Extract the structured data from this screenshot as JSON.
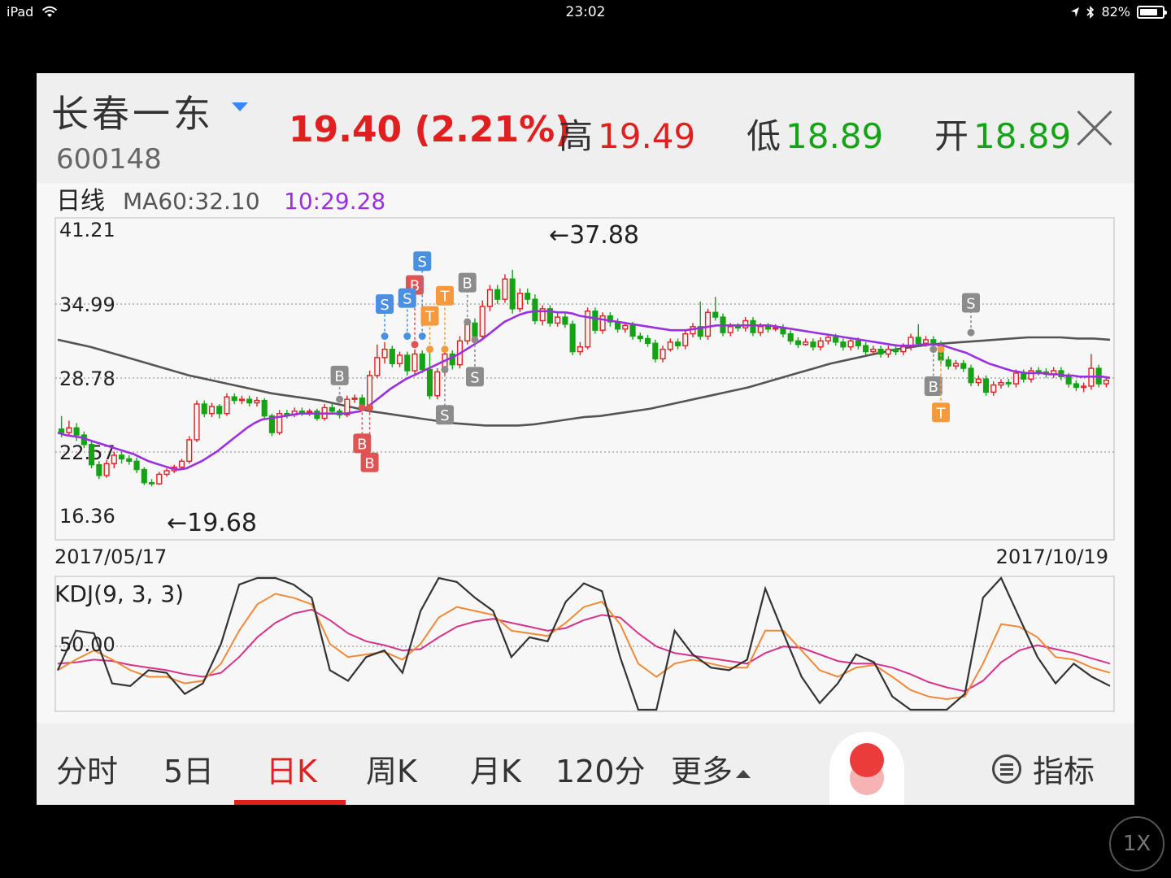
{
  "status_bar": {
    "device": "iPad",
    "time": "23:02",
    "battery": "82%",
    "battery_level": 0.82
  },
  "stock": {
    "name": "长春一东",
    "code": "600148",
    "price_text": "19.40 (2.21%)",
    "high_label": "高",
    "high": "19.49",
    "low_label": "低",
    "low": "18.89",
    "open_label": "开",
    "open": "18.89"
  },
  "chart_header": {
    "period": "日线",
    "ma60": "MA60:32.10",
    "ma_value": "10:29.28"
  },
  "colors": {
    "up": "#e02020",
    "down": "#14a314",
    "ma_purple": "#9b30e0",
    "ma60": "#555555",
    "k": "#f08a3a",
    "d": "#d6338a",
    "j": "#333333"
  },
  "chart_data": {
    "type": "candlestick",
    "y_labels": [
      "41.21",
      "34.99",
      "28.78",
      "22.57",
      "16.36"
    ],
    "ylim": [
      16.36,
      41.21
    ],
    "start_date": "2017/05/17",
    "end_date": "2017/10/19",
    "max_label": "←37.88",
    "min_label": "←19.68",
    "candles": [
      [
        24.5,
        24.2,
        25.6,
        23.8
      ],
      [
        24.2,
        24.6,
        25.2,
        23.9
      ],
      [
        24.6,
        24.0,
        25.0,
        23.5
      ],
      [
        24.0,
        23.2,
        24.3,
        22.9
      ],
      [
        23.2,
        21.5,
        23.5,
        21.2
      ],
      [
        21.5,
        20.6,
        21.8,
        20.3
      ],
      [
        20.6,
        21.6,
        21.9,
        20.4
      ],
      [
        21.6,
        22.3,
        22.6,
        21.2
      ],
      [
        22.3,
        22.0,
        22.6,
        21.6
      ],
      [
        22.0,
        21.8,
        22.3,
        21.5
      ],
      [
        21.8,
        21.1,
        22.1,
        20.8
      ],
      [
        21.1,
        20.0,
        21.3,
        19.8
      ],
      [
        20.0,
        19.9,
        20.3,
        19.68
      ],
      [
        19.9,
        20.7,
        20.9,
        19.8
      ],
      [
        20.7,
        21.0,
        21.2,
        20.5
      ],
      [
        21.0,
        21.3,
        21.5,
        20.8
      ],
      [
        21.3,
        21.8,
        22.0,
        21.1
      ],
      [
        21.8,
        23.6,
        23.9,
        21.6
      ],
      [
        23.6,
        26.6,
        26.9,
        23.4
      ],
      [
        26.6,
        25.8,
        26.9,
        25.5
      ],
      [
        25.8,
        26.4,
        26.7,
        25.5
      ],
      [
        26.4,
        25.8,
        26.6,
        25.4
      ],
      [
        25.8,
        27.2,
        27.5,
        25.6
      ],
      [
        27.2,
        26.9,
        27.5,
        26.6
      ],
      [
        26.9,
        27.0,
        27.3,
        26.6
      ],
      [
        27.0,
        26.7,
        27.3,
        26.4
      ],
      [
        26.7,
        26.9,
        27.2,
        26.4
      ],
      [
        26.9,
        25.6,
        27.1,
        25.3
      ],
      [
        25.6,
        24.2,
        25.8,
        23.9
      ],
      [
        24.2,
        25.8,
        26.1,
        24.0
      ],
      [
        25.8,
        25.7,
        26.1,
        25.4
      ],
      [
        25.7,
        26.0,
        26.3,
        25.5
      ],
      [
        26.0,
        25.9,
        26.3,
        25.6
      ],
      [
        25.9,
        26.0,
        26.2,
        25.6
      ],
      [
        26.0,
        25.4,
        26.2,
        25.2
      ],
      [
        25.4,
        26.3,
        26.6,
        25.2
      ],
      [
        26.3,
        26.0,
        26.6,
        25.8
      ],
      [
        26.0,
        25.7,
        26.2,
        25.4
      ],
      [
        25.7,
        27.0,
        27.3,
        25.5
      ],
      [
        27.0,
        27.1,
        27.4,
        26.7
      ],
      [
        27.1,
        26.5,
        27.4,
        26.2
      ],
      [
        26.5,
        29.0,
        29.4,
        26.3
      ],
      [
        29.0,
        30.5,
        31.6,
        28.8
      ],
      [
        30.5,
        31.2,
        31.8,
        30.0
      ],
      [
        31.2,
        30.0,
        31.5,
        29.7
      ],
      [
        30.0,
        30.7,
        31.0,
        29.7
      ],
      [
        30.7,
        29.4,
        31.0,
        29.0
      ],
      [
        29.4,
        30.8,
        31.2,
        29.0
      ],
      [
        30.8,
        29.5,
        31.1,
        29.2
      ],
      [
        29.5,
        27.3,
        31.0,
        27.0
      ],
      [
        27.3,
        29.3,
        29.6,
        27.0
      ],
      [
        29.3,
        30.8,
        31.1,
        29.0
      ],
      [
        30.8,
        29.9,
        31.1,
        29.5
      ],
      [
        29.9,
        31.9,
        32.3,
        29.6
      ],
      [
        31.9,
        33.4,
        33.8,
        31.6
      ],
      [
        33.4,
        32.3,
        33.8,
        31.9
      ],
      [
        32.3,
        34.8,
        35.3,
        32.0
      ],
      [
        34.8,
        36.2,
        36.6,
        34.4
      ],
      [
        36.2,
        35.4,
        36.6,
        35.0
      ],
      [
        35.4,
        37.1,
        37.5,
        35.1
      ],
      [
        37.1,
        34.6,
        37.88,
        34.2
      ],
      [
        34.6,
        35.9,
        36.3,
        34.3
      ],
      [
        35.9,
        35.4,
        36.3,
        35.0
      ],
      [
        35.4,
        33.6,
        35.8,
        33.3
      ],
      [
        33.6,
        34.6,
        34.9,
        33.2
      ],
      [
        34.6,
        33.4,
        34.9,
        33.1
      ],
      [
        33.4,
        33.9,
        34.3,
        33.1
      ],
      [
        33.9,
        33.3,
        34.3,
        33.0
      ],
      [
        33.3,
        31.0,
        33.6,
        30.7
      ],
      [
        31.0,
        31.4,
        31.8,
        30.7
      ],
      [
        31.4,
        34.4,
        34.7,
        31.2
      ],
      [
        34.4,
        32.8,
        34.7,
        32.5
      ],
      [
        32.8,
        34.0,
        34.3,
        32.5
      ],
      [
        34.0,
        33.5,
        34.3,
        33.1
      ],
      [
        33.5,
        32.9,
        33.8,
        32.6
      ],
      [
        32.9,
        33.2,
        33.5,
        32.6
      ],
      [
        33.2,
        32.3,
        33.5,
        32.0
      ],
      [
        32.3,
        32.1,
        32.6,
        31.8
      ],
      [
        32.1,
        31.7,
        32.4,
        31.4
      ],
      [
        31.7,
        30.4,
        32.0,
        30.1
      ],
      [
        30.4,
        31.2,
        31.5,
        30.1
      ],
      [
        31.2,
        31.8,
        32.1,
        31.0
      ],
      [
        31.8,
        31.5,
        32.1,
        31.2
      ],
      [
        31.5,
        32.5,
        32.8,
        31.2
      ],
      [
        32.5,
        33.1,
        33.4,
        32.2
      ],
      [
        33.1,
        32.3,
        35.2,
        32.0
      ],
      [
        32.3,
        34.3,
        34.6,
        32.0
      ],
      [
        34.3,
        33.9,
        35.6,
        33.6
      ],
      [
        33.9,
        32.6,
        34.2,
        32.3
      ],
      [
        32.6,
        33.1,
        33.4,
        32.3
      ],
      [
        33.1,
        33.0,
        33.4,
        32.7
      ],
      [
        33.0,
        33.6,
        33.9,
        32.7
      ],
      [
        33.6,
        32.6,
        33.9,
        32.3
      ],
      [
        32.6,
        33.1,
        33.4,
        32.3
      ],
      [
        33.1,
        32.9,
        33.4,
        32.6
      ],
      [
        32.9,
        33.0,
        33.3,
        32.7
      ],
      [
        33.0,
        32.5,
        33.3,
        32.2
      ],
      [
        32.5,
        31.9,
        32.8,
        31.6
      ],
      [
        31.9,
        31.6,
        32.2,
        31.3
      ],
      [
        31.6,
        31.8,
        32.1,
        31.5
      ],
      [
        31.8,
        31.4,
        32.1,
        31.1
      ],
      [
        31.4,
        31.9,
        32.2,
        31.1
      ],
      [
        31.9,
        32.2,
        32.5,
        31.6
      ],
      [
        32.2,
        31.8,
        32.5,
        31.5
      ],
      [
        31.8,
        31.4,
        32.1,
        31.1
      ],
      [
        31.4,
        31.9,
        32.2,
        31.1
      ],
      [
        31.9,
        31.5,
        32.2,
        31.2
      ],
      [
        31.5,
        31.0,
        31.8,
        30.7
      ],
      [
        31.0,
        31.2,
        31.5,
        30.7
      ],
      [
        31.2,
        30.8,
        31.5,
        30.5
      ],
      [
        30.8,
        31.2,
        31.5,
        30.5
      ],
      [
        31.2,
        31.0,
        31.5,
        30.7
      ],
      [
        31.0,
        31.4,
        31.7,
        30.7
      ],
      [
        31.4,
        32.2,
        32.5,
        31.1
      ],
      [
        32.2,
        31.7,
        33.3,
        31.4
      ],
      [
        31.7,
        32.0,
        32.3,
        31.4
      ],
      [
        32.0,
        31.6,
        32.3,
        31.3
      ],
      [
        31.6,
        30.3,
        31.9,
        30.0
      ],
      [
        30.3,
        29.8,
        30.6,
        29.5
      ],
      [
        29.8,
        30.0,
        30.3,
        29.5
      ],
      [
        30.0,
        29.6,
        30.3,
        29.3
      ],
      [
        29.6,
        28.4,
        29.9,
        28.1
      ],
      [
        28.4,
        28.7,
        29.0,
        28.1
      ],
      [
        28.7,
        27.6,
        29.0,
        27.3
      ],
      [
        27.6,
        28.2,
        28.5,
        27.3
      ],
      [
        28.2,
        28.4,
        28.7,
        27.9
      ],
      [
        28.4,
        28.3,
        28.7,
        28.0
      ],
      [
        28.3,
        29.2,
        29.5,
        28.0
      ],
      [
        29.2,
        28.7,
        29.5,
        28.4
      ],
      [
        28.7,
        29.4,
        29.7,
        28.4
      ],
      [
        29.4,
        29.3,
        29.7,
        29.0
      ],
      [
        29.3,
        29.1,
        29.6,
        28.8
      ],
      [
        29.1,
        29.4,
        29.7,
        28.8
      ],
      [
        29.4,
        28.9,
        29.7,
        28.6
      ],
      [
        28.9,
        28.3,
        29.2,
        28.0
      ],
      [
        28.3,
        28.0,
        28.6,
        27.7
      ],
      [
        28.0,
        28.1,
        28.4,
        27.6
      ],
      [
        28.1,
        29.6,
        30.8,
        27.8
      ],
      [
        29.6,
        28.3,
        29.9,
        28.0
      ],
      [
        28.3,
        28.6,
        28.9,
        28.0
      ]
    ],
    "ma_line": [
      24.2,
      24.0,
      23.9,
      23.8,
      23.6,
      23.4,
      23.2,
      23.0,
      22.8,
      22.6,
      22.4,
      22.1,
      21.8,
      21.6,
      21.4,
      21.2,
      21.1,
      21.2,
      21.5,
      21.8,
      22.2,
      22.6,
      23.1,
      23.6,
      24.1,
      24.6,
      25.0,
      25.3,
      25.4,
      25.5,
      25.6,
      25.7,
      25.8,
      25.8,
      25.8,
      25.8,
      25.8,
      25.8,
      25.8,
      25.9,
      26.0,
      26.4,
      26.9,
      27.4,
      27.9,
      28.3,
      28.7,
      29.0,
      29.3,
      29.6,
      29.9,
      30.2,
      30.5,
      30.8,
      31.2,
      31.6,
      32.0,
      32.5,
      33.0,
      33.5,
      33.8,
      34.1,
      34.3,
      34.4,
      34.4,
      34.4,
      34.3,
      34.3,
      34.2,
      34.0,
      33.9,
      33.8,
      33.7,
      33.6,
      33.5,
      33.4,
      33.3,
      33.2,
      33.1,
      33.0,
      32.9,
      32.8,
      32.8,
      32.8,
      32.9,
      33.0,
      33.1,
      33.2,
      33.2,
      33.2,
      33.2,
      33.2,
      33.2,
      33.2,
      33.2,
      33.1,
      33.0,
      32.9,
      32.8,
      32.7,
      32.6,
      32.5,
      32.4,
      32.3,
      32.2,
      32.1,
      32.0,
      31.9,
      31.8,
      31.7,
      31.6,
      31.5,
      31.5,
      31.5,
      31.6,
      31.6,
      31.6,
      31.5,
      31.3,
      31.1,
      30.9,
      30.6,
      30.3,
      30.0,
      29.8,
      29.6,
      29.4,
      29.3,
      29.2,
      29.2,
      29.2,
      29.1,
      29.1,
      29.0,
      29.0,
      28.9,
      28.9,
      28.9,
      28.9,
      28.8
    ],
    "ma60_line": [
      32.0,
      31.7,
      31.4,
      31.0,
      30.6,
      30.2,
      29.8,
      29.4,
      29.0,
      28.7,
      28.4,
      28.1,
      27.8,
      27.5,
      27.3,
      27.1,
      26.9,
      26.6,
      26.3,
      26.0,
      25.8,
      25.6,
      25.4,
      25.2,
      25.0,
      24.9,
      24.8,
      24.8,
      24.8,
      24.9,
      25.1,
      25.3,
      25.5,
      25.6,
      25.8,
      26.0,
      26.2,
      26.5,
      26.8,
      27.1,
      27.4,
      27.7,
      28.0,
      28.4,
      28.8,
      29.2,
      29.6,
      30.0,
      30.3,
      30.6,
      30.9,
      31.2,
      31.4,
      31.6,
      31.7,
      31.8,
      31.9,
      32.0,
      32.1,
      32.2,
      32.2,
      32.2,
      32.1,
      32.1,
      32.0
    ],
    "markers": [
      {
        "letter": "S",
        "kind": "sell",
        "index": 43,
        "price": 35.0,
        "anchor": 32.3
      },
      {
        "letter": "B",
        "kind": "buy",
        "index": 47,
        "price": 36.6,
        "anchor": 31.6
      },
      {
        "letter": "S",
        "kind": "sell",
        "index": 46,
        "price": 35.5,
        "anchor": 32.3
      },
      {
        "letter": "S",
        "kind": "sell",
        "index": 48,
        "price": 38.6,
        "anchor": 32.3
      },
      {
        "letter": "T",
        "kind": "t",
        "index": 51,
        "price": 35.7,
        "anchor": 31.2
      },
      {
        "letter": "T",
        "kind": "t",
        "index": 49,
        "price": 34.0,
        "anchor": 31.2
      },
      {
        "letter": "B",
        "kind": "hold",
        "index": 54,
        "price": 36.8,
        "anchor": 33.5
      },
      {
        "letter": "S",
        "kind": "hold",
        "index": 55,
        "price": 28.9,
        "anchor": 32.0
      },
      {
        "letter": "S",
        "kind": "hold",
        "index": 51,
        "price": 25.7,
        "anchor": 29.5
      },
      {
        "letter": "B",
        "kind": "hold",
        "index": 37,
        "price": 29.0,
        "anchor": 27.0
      },
      {
        "letter": "B",
        "kind": "buy",
        "index": 40,
        "price": 23.3,
        "anchor": 26.3
      },
      {
        "letter": "B",
        "kind": "buy",
        "index": 41,
        "price": 21.7,
        "anchor": 26.3
      },
      {
        "letter": "S",
        "kind": "hold",
        "index": 121,
        "price": 35.1,
        "anchor": 32.6
      },
      {
        "letter": "B",
        "kind": "hold",
        "index": 116,
        "price": 28.1,
        "anchor": 31.2
      },
      {
        "letter": "T",
        "kind": "t",
        "index": 117,
        "price": 25.9,
        "anchor": 31.2
      }
    ],
    "kdj": {
      "label": "KDJ(9, 3, 3)",
      "y_label": "50.00",
      "ylim": [
        0,
        100
      ],
      "j": [
        30,
        60,
        58,
        20,
        18,
        30,
        28,
        12,
        20,
        50,
        95,
        100,
        100,
        95,
        85,
        30,
        22,
        40,
        45,
        28,
        75,
        100,
        97,
        85,
        75,
        40,
        55,
        52,
        82,
        96,
        90,
        40,
        0,
        0,
        60,
        42,
        32,
        30,
        38,
        92,
        58,
        25,
        5,
        20,
        42,
        36,
        10,
        0,
        0,
        0,
        12,
        85,
        100,
        70,
        40,
        20,
        35,
        25,
        18
      ],
      "k": [
        30,
        38,
        45,
        38,
        30,
        25,
        25,
        20,
        22,
        35,
        60,
        80,
        88,
        85,
        80,
        50,
        40,
        42,
        44,
        38,
        50,
        70,
        78,
        75,
        72,
        60,
        58,
        56,
        66,
        78,
        82,
        65,
        35,
        25,
        35,
        38,
        35,
        32,
        32,
        60,
        60,
        45,
        30,
        25,
        32,
        34,
        25,
        15,
        10,
        8,
        10,
        35,
        65,
        63,
        55,
        40,
        38,
        32,
        28
      ],
      "d": [
        35,
        36,
        38,
        37,
        34,
        32,
        30,
        27,
        25,
        28,
        40,
        55,
        66,
        73,
        76,
        68,
        58,
        52,
        49,
        45,
        46,
        55,
        63,
        67,
        69,
        66,
        63,
        60,
        62,
        68,
        72,
        70,
        58,
        48,
        43,
        41,
        39,
        37,
        35,
        43,
        48,
        47,
        42,
        37,
        35,
        35,
        32,
        27,
        21,
        17,
        14,
        22,
        36,
        45,
        49,
        46,
        43,
        39,
        35
      ]
    }
  },
  "tabs": [
    {
      "label": "分时"
    },
    {
      "label": "5日"
    },
    {
      "label": "日K"
    },
    {
      "label": "周K"
    },
    {
      "label": "月K"
    },
    {
      "label": "120分"
    },
    {
      "label": "更多"
    }
  ],
  "indicator_label": "指标",
  "speed_label": "1X"
}
